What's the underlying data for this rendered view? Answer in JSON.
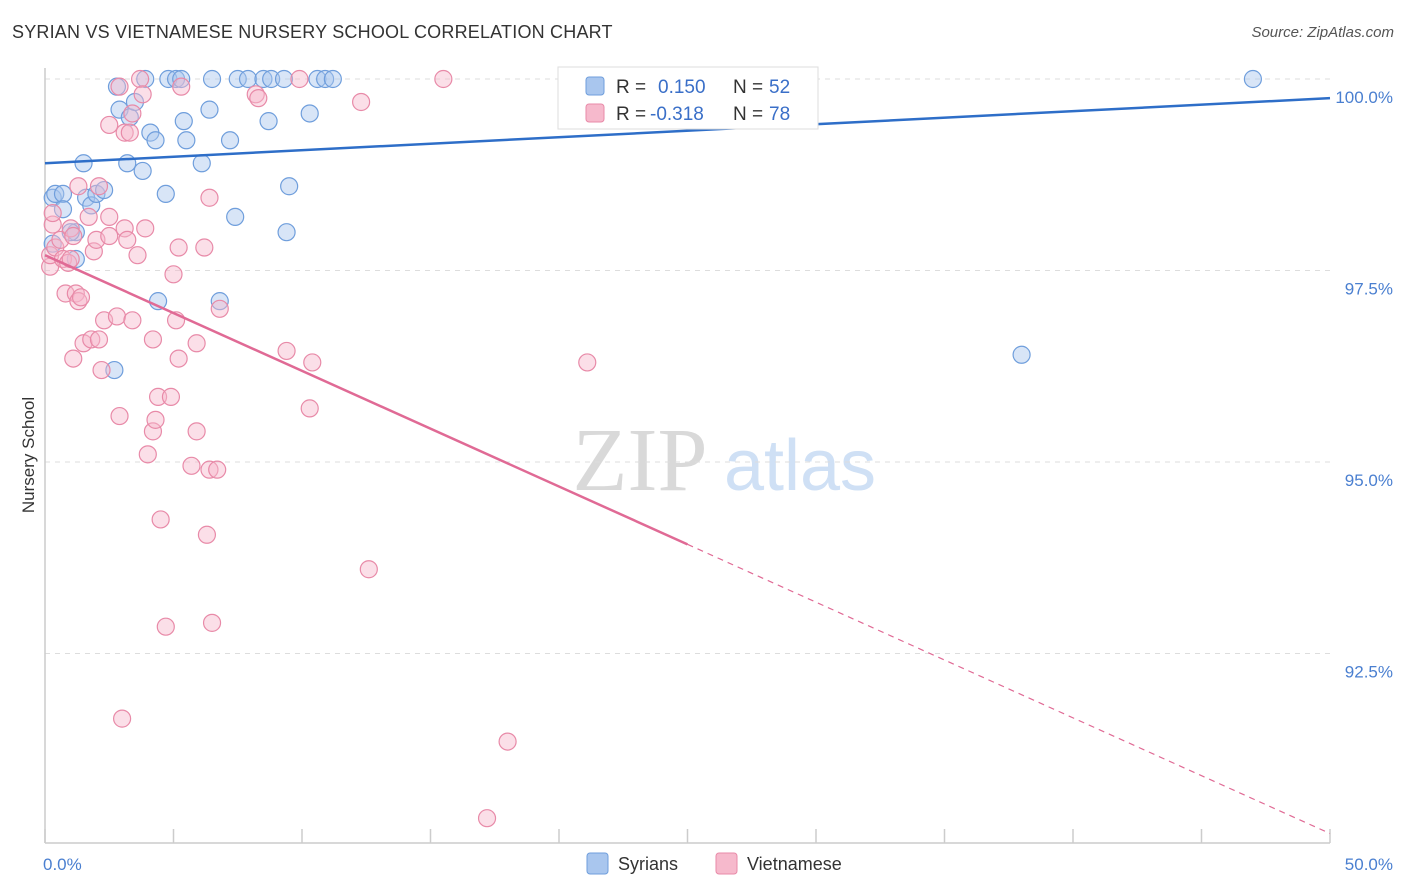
{
  "title": "SYRIAN VS VIETNAMESE NURSERY SCHOOL CORRELATION CHART",
  "source": "Source: ZipAtlas.com",
  "watermark": {
    "zip": "ZIP",
    "atlas": "atlas"
  },
  "colors": {
    "syrians_fill": "#a9c6ee",
    "syrians_stroke": "#6f9edc",
    "syrians_line": "#2e6ec8",
    "vietnamese_fill": "#f6b9cc",
    "vietnamese_stroke": "#e88aa8",
    "vietnamese_line": "#e06a95",
    "tick_text": "#4a7fd0",
    "grid": "#dddddd"
  },
  "legend": {
    "rows": [
      {
        "r_label": "R =",
        "r_value": "0.150",
        "n_label": "N =",
        "n_value": "52"
      },
      {
        "r_label": "R =",
        "r_value": "-0.318",
        "n_label": "N =",
        "n_value": "78"
      }
    ]
  },
  "bottom_legend": [
    "Syrians",
    "Vietnamese"
  ],
  "chart_data": {
    "type": "scatter",
    "title": "SYRIAN VS VIETNAMESE NURSERY SCHOOL CORRELATION CHART",
    "xlabel": "",
    "ylabel": "Nursery School",
    "xlim": [
      0,
      50
    ],
    "ylim": [
      90.0,
      100.3
    ],
    "x_tick_labels": [
      "0.0%",
      "50.0%"
    ],
    "y_ticks": [
      92.5,
      95.0,
      97.5,
      100.0
    ],
    "y_tick_labels": [
      "92.5%",
      "95.0%",
      "97.5%",
      "100.0%"
    ],
    "grid": true,
    "legend_position": "top-center",
    "series": [
      {
        "name": "Syrians",
        "r": 0.15,
        "n": 52,
        "trend": {
          "x": [
            0,
            50
          ],
          "y": [
            98.9,
            99.75
          ],
          "dashed_from": null
        },
        "points": [
          [
            0.3,
            98.45
          ],
          [
            0.3,
            97.85
          ],
          [
            0.4,
            98.5
          ],
          [
            0.7,
            98.5
          ],
          [
            0.7,
            98.3
          ],
          [
            1.2,
            98.0
          ],
          [
            1.2,
            97.65
          ],
          [
            1.5,
            98.9
          ],
          [
            1.6,
            98.45
          ],
          [
            1.8,
            98.35
          ],
          [
            2.0,
            98.5
          ],
          [
            2.3,
            98.55
          ],
          [
            2.7,
            96.2
          ],
          [
            2.8,
            99.9
          ],
          [
            2.9,
            99.6
          ],
          [
            3.2,
            98.9
          ],
          [
            3.3,
            99.5
          ],
          [
            3.5,
            99.7
          ],
          [
            3.8,
            98.8
          ],
          [
            3.9,
            100.0
          ],
          [
            4.1,
            99.3
          ],
          [
            4.3,
            99.2
          ],
          [
            4.4,
            97.1
          ],
          [
            4.7,
            98.5
          ],
          [
            4.8,
            100.0
          ],
          [
            5.1,
            100.0
          ],
          [
            5.3,
            100.0
          ],
          [
            5.4,
            99.45
          ],
          [
            5.5,
            99.2
          ],
          [
            6.1,
            98.9
          ],
          [
            6.4,
            99.6
          ],
          [
            6.5,
            100.0
          ],
          [
            6.8,
            97.1
          ],
          [
            7.2,
            99.2
          ],
          [
            7.4,
            98.2
          ],
          [
            7.5,
            100.0
          ],
          [
            7.9,
            100.0
          ],
          [
            8.5,
            100.0
          ],
          [
            8.8,
            100.0
          ],
          [
            8.7,
            99.45
          ],
          [
            9.3,
            100.0
          ],
          [
            9.4,
            98.0
          ],
          [
            9.5,
            98.6
          ],
          [
            10.3,
            99.55
          ],
          [
            10.6,
            100.0
          ],
          [
            10.9,
            100.0
          ],
          [
            11.2,
            100.0
          ],
          [
            28.1,
            100.0
          ],
          [
            28.3,
            100.0
          ],
          [
            38.0,
            96.4
          ],
          [
            47.0,
            100.0
          ],
          [
            1.0,
            98.0
          ]
        ]
      },
      {
        "name": "Vietnamese",
        "r": -0.318,
        "n": 78,
        "trend": {
          "x": [
            0,
            50
          ],
          "y": [
            97.7,
            90.15
          ],
          "dashed_from": 25.0
        },
        "points": [
          [
            0.2,
            97.55
          ],
          [
            0.2,
            97.7
          ],
          [
            0.3,
            98.1
          ],
          [
            0.3,
            98.25
          ],
          [
            0.4,
            97.8
          ],
          [
            0.6,
            97.9
          ],
          [
            0.7,
            97.65
          ],
          [
            0.8,
            97.2
          ],
          [
            0.9,
            97.6
          ],
          [
            1.0,
            98.05
          ],
          [
            1.1,
            97.95
          ],
          [
            1.1,
            96.35
          ],
          [
            1.2,
            97.2
          ],
          [
            1.3,
            97.1
          ],
          [
            1.3,
            98.6
          ],
          [
            1.4,
            97.15
          ],
          [
            1.5,
            96.55
          ],
          [
            1.7,
            98.2
          ],
          [
            1.8,
            96.6
          ],
          [
            1.9,
            97.75
          ],
          [
            2.0,
            97.9
          ],
          [
            2.1,
            96.6
          ],
          [
            2.1,
            98.6
          ],
          [
            2.2,
            96.2
          ],
          [
            2.3,
            96.85
          ],
          [
            2.5,
            97.95
          ],
          [
            2.5,
            98.2
          ],
          [
            2.5,
            99.4
          ],
          [
            2.8,
            96.9
          ],
          [
            2.9,
            99.9
          ],
          [
            2.9,
            95.6
          ],
          [
            3.0,
            91.65
          ],
          [
            3.1,
            99.3
          ],
          [
            3.1,
            98.05
          ],
          [
            3.2,
            97.9
          ],
          [
            3.3,
            99.3
          ],
          [
            3.4,
            99.55
          ],
          [
            3.4,
            96.85
          ],
          [
            3.6,
            97.7
          ],
          [
            3.7,
            100.0
          ],
          [
            3.8,
            99.8
          ],
          [
            3.9,
            98.05
          ],
          [
            4.0,
            95.1
          ],
          [
            4.2,
            96.6
          ],
          [
            4.2,
            95.4
          ],
          [
            4.3,
            95.55
          ],
          [
            4.4,
            95.85
          ],
          [
            4.5,
            94.25
          ],
          [
            4.7,
            92.85
          ],
          [
            4.9,
            95.85
          ],
          [
            5.0,
            97.45
          ],
          [
            5.1,
            96.85
          ],
          [
            5.2,
            96.35
          ],
          [
            5.2,
            97.8
          ],
          [
            5.3,
            99.9
          ],
          [
            5.7,
            94.95
          ],
          [
            5.9,
            95.4
          ],
          [
            5.9,
            96.55
          ],
          [
            6.2,
            97.8
          ],
          [
            6.4,
            98.45
          ],
          [
            6.3,
            94.05
          ],
          [
            6.4,
            94.9
          ],
          [
            6.5,
            92.9
          ],
          [
            6.7,
            94.9
          ],
          [
            6.8,
            97.0
          ],
          [
            8.2,
            99.8
          ],
          [
            8.3,
            99.75
          ],
          [
            9.4,
            96.45
          ],
          [
            9.9,
            100.0
          ],
          [
            10.3,
            95.7
          ],
          [
            10.4,
            96.3
          ],
          [
            12.3,
            99.7
          ],
          [
            12.6,
            93.6
          ],
          [
            15.5,
            100.0
          ],
          [
            17.2,
            90.35
          ],
          [
            18.0,
            91.35
          ],
          [
            21.1,
            96.3
          ],
          [
            1.0,
            97.65
          ]
        ]
      }
    ]
  }
}
